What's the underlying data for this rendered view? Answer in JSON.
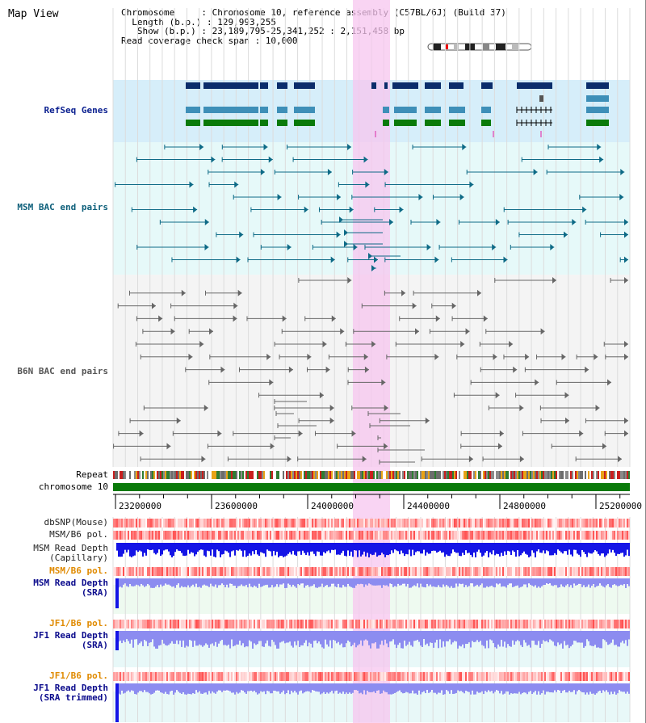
{
  "header": {
    "view_title": "Map View",
    "info_lines": [
      "Chromosome     : Chromosome 10, reference assembly (C57BL/6J) (Build 37)",
      "  Length (b.p.) : 129,993,255",
      "   Show (b.p.) : 23,189,795-25,341,252 : 2,151,458 bp",
      "Read coverage check span : 10,000"
    ]
  },
  "tracks": {
    "refseq": {
      "label": "RefSeq Genes",
      "color": "#0a1f8f"
    },
    "msm_bac": {
      "label": "MSM BAC end pairs",
      "color": "#0d5f7a"
    },
    "b6n_bac": {
      "label": "B6N BAC end pairs",
      "color": "#555555"
    },
    "repeat": {
      "label": "Repeat"
    },
    "chromosome": {
      "label": "chromosome 10"
    },
    "dbsnp": {
      "label": "dbSNP(Mouse)"
    },
    "msm_b6_pol": {
      "label": "MSM/B6 pol."
    },
    "msm_depth_cap": {
      "label_line1": "MSM Read Depth",
      "label_line2": "(Capillary)"
    },
    "msm_b6_pol2": {
      "label": "MSM/B6 pol."
    },
    "msm_depth_sra": {
      "label_line1": "MSM Read Depth",
      "label_line2": "(SRA)"
    },
    "jf1_b6_pol": {
      "label": "JF1/B6 pol."
    },
    "jf1_depth_sra": {
      "label_line1": "JF1 Read Depth",
      "label_line2": "(SRA)"
    },
    "jf1_b6_pol2": {
      "label": "JF1/B6 pol."
    },
    "jf1_depth_trim": {
      "label_line1": "JF1 Read Depth",
      "label_line2": "(SRA trimmed)"
    }
  },
  "axis": {
    "ticks": [
      {
        "value": 23200000,
        "label": "23200000"
      },
      {
        "value": 23600000,
        "label": "23600000"
      },
      {
        "value": 24000000,
        "label": "24000000"
      },
      {
        "value": 24400000,
        "label": "24400000"
      },
      {
        "value": 24800000,
        "label": "24800000"
      },
      {
        "value": 25200000,
        "label": "25200000"
      }
    ],
    "start": 23189795,
    "end": 25341252
  },
  "highlight": {
    "start": 24180000,
    "end": 24340000
  },
  "colors": {
    "refseq_bg": "#d6eefa",
    "bac_bg": "#e6f9f9",
    "b6n_bg": "#f4f4f4",
    "highlight": "#f7c6ef",
    "gene_dark": "#0b2d6b",
    "gene_mid": "#3e8fb8",
    "gene_green": "#0a7a0a",
    "chrom_green": "#0a7a0a",
    "depth_blue": "#1414e6",
    "depth_light": "#8c8cf0",
    "label_orange": "#e08a00",
    "label_navy": "#0a0a8c",
    "label_gray": "#222222"
  }
}
